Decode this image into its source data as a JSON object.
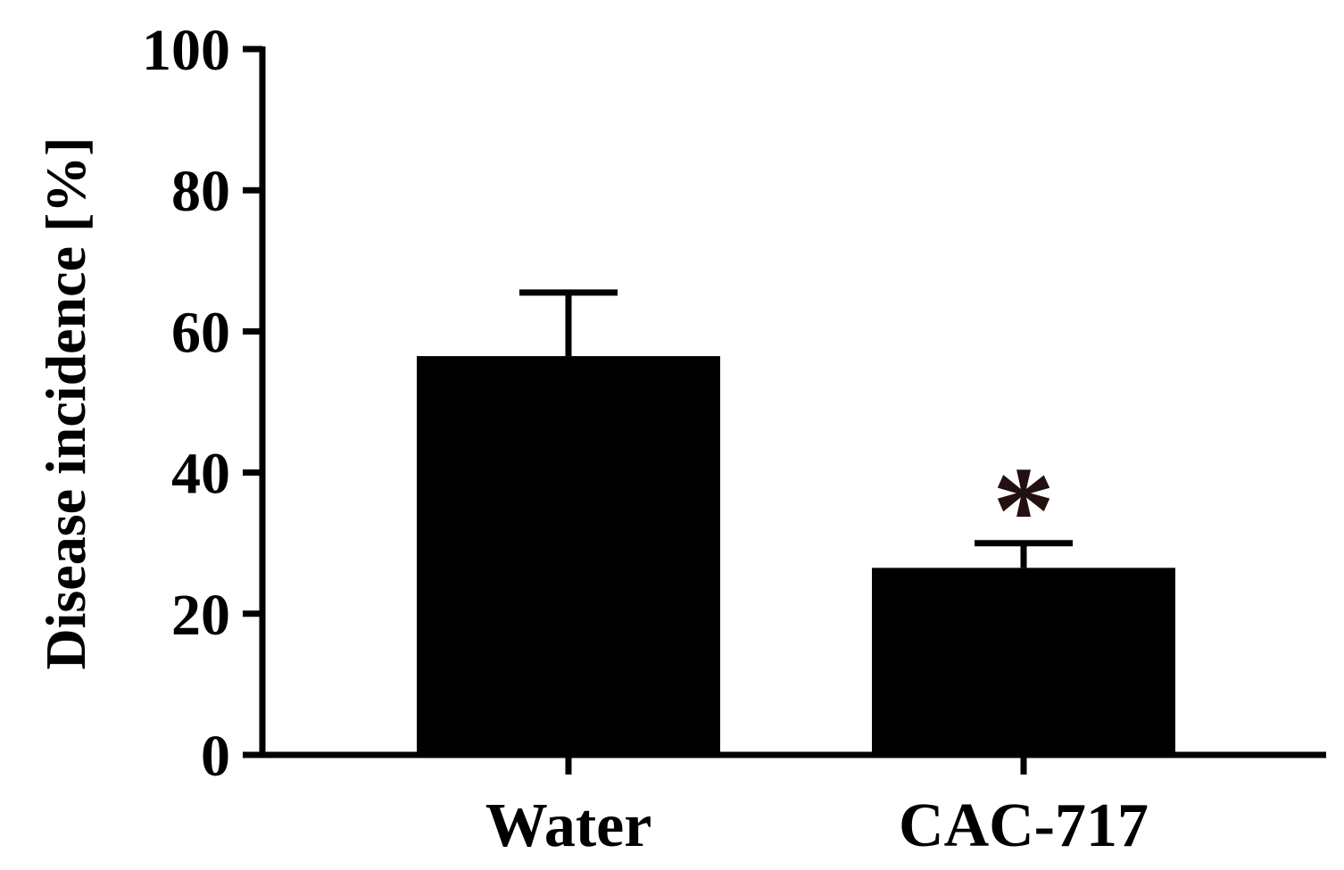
{
  "chart_data": {
    "type": "bar",
    "categories": [
      "Water",
      "CAC-717"
    ],
    "values": [
      56.5,
      26.5
    ],
    "error_upper": [
      65.5,
      30.0
    ],
    "ylabel": "Disease incidence [%]",
    "xlabel": "",
    "ylim": [
      0,
      100
    ],
    "yticks": [
      "0",
      "20",
      "40",
      "60",
      "80",
      "100"
    ],
    "ytick_values": [
      0,
      20,
      40,
      60,
      80,
      100
    ],
    "annotations": [
      {
        "category": "CAC-717",
        "text": "*"
      }
    ],
    "grid": false,
    "bar_color": "#000000"
  }
}
